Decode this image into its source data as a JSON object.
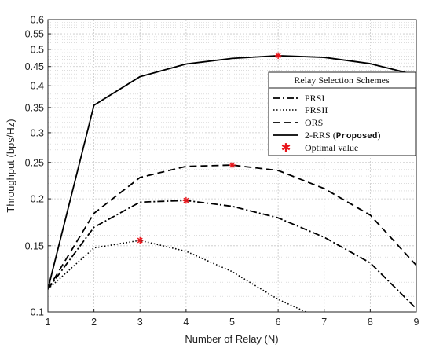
{
  "chart_data": {
    "type": "line",
    "title": "",
    "xlabel": "Number of Relay (N)",
    "ylabel": "Throughput (bps/Hz)",
    "xlim": [
      1,
      9
    ],
    "ylim": [
      0.1,
      0.6
    ],
    "yscale": "log",
    "grid": true,
    "x_ticks": [
      "1",
      "2",
      "3",
      "4",
      "5",
      "6",
      "7",
      "8",
      "9"
    ],
    "y_ticks": [
      "0.1",
      "0.15",
      "0.2",
      "0.25",
      "0.3",
      "0.35",
      "0.4",
      "0.45",
      "0.5",
      "0.55",
      "0.6"
    ],
    "legend": {
      "title": "Relay Selection Schemes",
      "placement": "right",
      "entries": [
        "PRSI",
        "PRSII",
        "ORS",
        "2-RRS",
        "Optimal value"
      ],
      "proposed_suffix_open": "(",
      "proposed_word": "Proposed",
      "proposed_suffix_close": ")"
    },
    "x": [
      1,
      2,
      3,
      4,
      5,
      6,
      7,
      8,
      9
    ],
    "series": [
      {
        "name": "PRSI",
        "style": "dashdot",
        "values": [
          0.115,
          0.168,
          0.196,
          0.198,
          0.191,
          0.178,
          0.158,
          0.135,
          0.102
        ]
      },
      {
        "name": "PRSII",
        "style": "dotted",
        "values": [
          0.115,
          0.148,
          0.155,
          0.145,
          0.128,
          0.108,
          0.095,
          null,
          null
        ]
      },
      {
        "name": "ORS",
        "style": "dashed",
        "values": [
          0.115,
          0.183,
          0.228,
          0.244,
          0.246,
          0.238,
          0.213,
          0.181,
          0.133
        ]
      },
      {
        "name": "2-RRS",
        "style": "solid",
        "values": [
          0.115,
          0.355,
          0.423,
          0.457,
          0.473,
          0.481,
          0.476,
          0.458,
          0.427
        ]
      }
    ],
    "optimal_points": [
      {
        "x": 6,
        "y": 0.481
      },
      {
        "x": 5,
        "y": 0.246
      },
      {
        "x": 4,
        "y": 0.198
      },
      {
        "x": 3,
        "y": 0.155
      }
    ],
    "colors": {
      "line": "#000000",
      "marker": "#e8141a",
      "grid": "#c8c8c8",
      "frame": "#222222"
    }
  }
}
